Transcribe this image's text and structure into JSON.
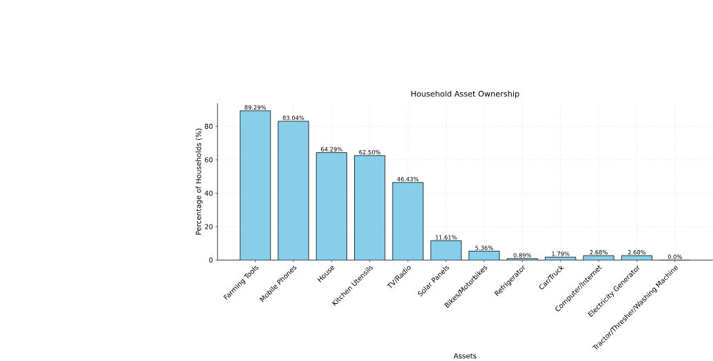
{
  "chart_data": {
    "type": "bar",
    "title": "Household Asset Ownership",
    "xlabel": "Assets",
    "ylabel": "Percentage of Households (%)",
    "categories": [
      "Farming Tools",
      "Mobile Phones",
      "House",
      "Kitchen Utensils",
      "TV/Radio",
      "Solar Panels",
      "Bikes/Motorbikes",
      "Refrigerator",
      "Car/Truck",
      "Computer/Internet",
      "Electricity Generator",
      "Tractor/Thresher/Washing Machine"
    ],
    "values": [
      89.29,
      83.04,
      64.29,
      62.5,
      46.43,
      11.61,
      5.36,
      0.89,
      1.79,
      2.68,
      2.68,
      0.0
    ],
    "value_labels": [
      "89.29%",
      "83.04%",
      "64.29%",
      "62.50%",
      "46.43%",
      "11.61%",
      "5.36%",
      "0.89%",
      "1.79%",
      "2.68%",
      "2.68%",
      "0.0%"
    ],
    "color": "#87ceeb",
    "ylim": [
      0,
      93.75
    ],
    "yticks": [
      0,
      20,
      40,
      60,
      80
    ],
    "grid": true
  }
}
